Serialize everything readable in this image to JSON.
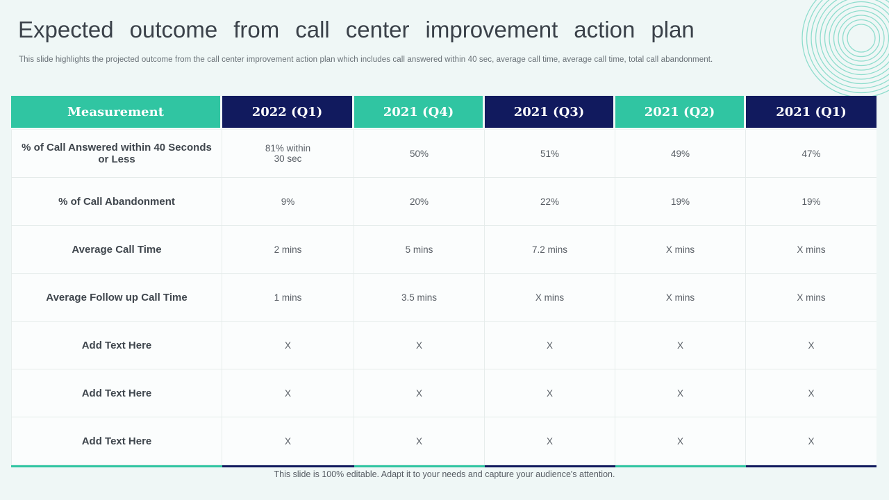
{
  "slide": {
    "title": "Expected outcome from call center improvement action plan",
    "subtitle": "This slide highlights the projected outcome from the call center improvement action plan which includes call answered within 40 sec, average call time, average call time, total call abandonment.",
    "footer": "This slide is 100% editable. Adapt it to your needs and capture your audience's attention."
  },
  "colors": {
    "teal": "#30c5a2",
    "navy": "#111a5e",
    "slide_bg": "#eff7f6",
    "cell_bg": "#fbfdfd",
    "ring_teal": "#41c8ac"
  },
  "table": {
    "headers": [
      {
        "label": "Measurement",
        "color": "teal"
      },
      {
        "label": "2022 (Q1)",
        "color": "navy"
      },
      {
        "label": "2021 (Q4)",
        "color": "teal"
      },
      {
        "label": "2021 (Q3)",
        "color": "navy"
      },
      {
        "label": "2021 (Q2)",
        "color": "teal"
      },
      {
        "label": "2021 (Q1)",
        "color": "navy"
      }
    ],
    "rows": [
      {
        "label": "% of Call Answered within 40 Seconds or Less",
        "values": [
          "81% within\n30 sec",
          "50%",
          "51%",
          "49%",
          "47%"
        ]
      },
      {
        "label": "% of Call Abandonment",
        "values": [
          "9%",
          "20%",
          "22%",
          "19%",
          "19%"
        ]
      },
      {
        "label": "Average Call Time",
        "values": [
          "2 mins",
          "5 mins",
          "7.2 mins",
          "X mins",
          "X mins"
        ]
      },
      {
        "label": "Average Follow up Call Time",
        "values": [
          "1 mins",
          "3.5 mins",
          "X mins",
          "X mins",
          "X mins"
        ]
      },
      {
        "label": "Add  Text Here",
        "values": [
          "X",
          "X",
          "X",
          "X",
          "X"
        ]
      },
      {
        "label": "Add  Text Here",
        "values": [
          "X",
          "X",
          "X",
          "X",
          "X"
        ]
      },
      {
        "label": "Add  Text Here",
        "values": [
          "X",
          "X",
          "X",
          "X",
          "X"
        ]
      }
    ]
  }
}
